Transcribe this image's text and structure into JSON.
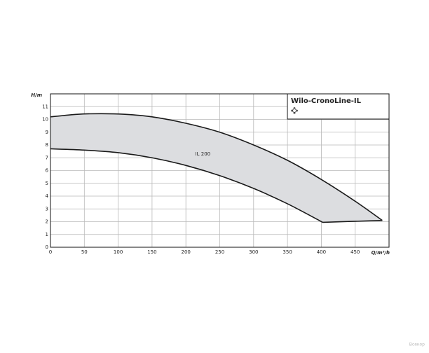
{
  "chart_data": {
    "type": "range-area",
    "title": "Wilo-CronoLine-IL",
    "annotation": "IL 200",
    "x_label": "Q/m³/h",
    "y_label": "H/m",
    "watermark": "Всекор",
    "color": "#dcdde0",
    "line_color": "#1a1a1a",
    "upper": {
      "x": [
        0,
        40,
        75,
        110,
        150,
        200,
        250,
        300,
        350,
        400,
        450,
        490
      ],
      "y": [
        10.2,
        10.4,
        10.45,
        10.4,
        10.2,
        9.7,
        9.0,
        8.0,
        6.8,
        5.3,
        3.6,
        2.1
      ]
    },
    "lower": {
      "x": [
        0,
        50,
        100,
        150,
        200,
        250,
        300,
        350,
        402
      ],
      "y": [
        7.7,
        7.6,
        7.4,
        7.0,
        6.4,
        5.6,
        4.6,
        3.4,
        1.95
      ]
    },
    "annotation_at": {
      "x": 225,
      "y": 7.3
    },
    "xlim": [
      0,
      500
    ],
    "ylim": [
      0,
      12
    ],
    "xticks": [
      0,
      50,
      100,
      150,
      200,
      250,
      300,
      350,
      400,
      450
    ],
    "yticks": [
      0,
      1,
      2,
      3,
      4,
      5,
      6,
      7,
      8,
      9,
      10,
      11
    ],
    "grid": true
  }
}
